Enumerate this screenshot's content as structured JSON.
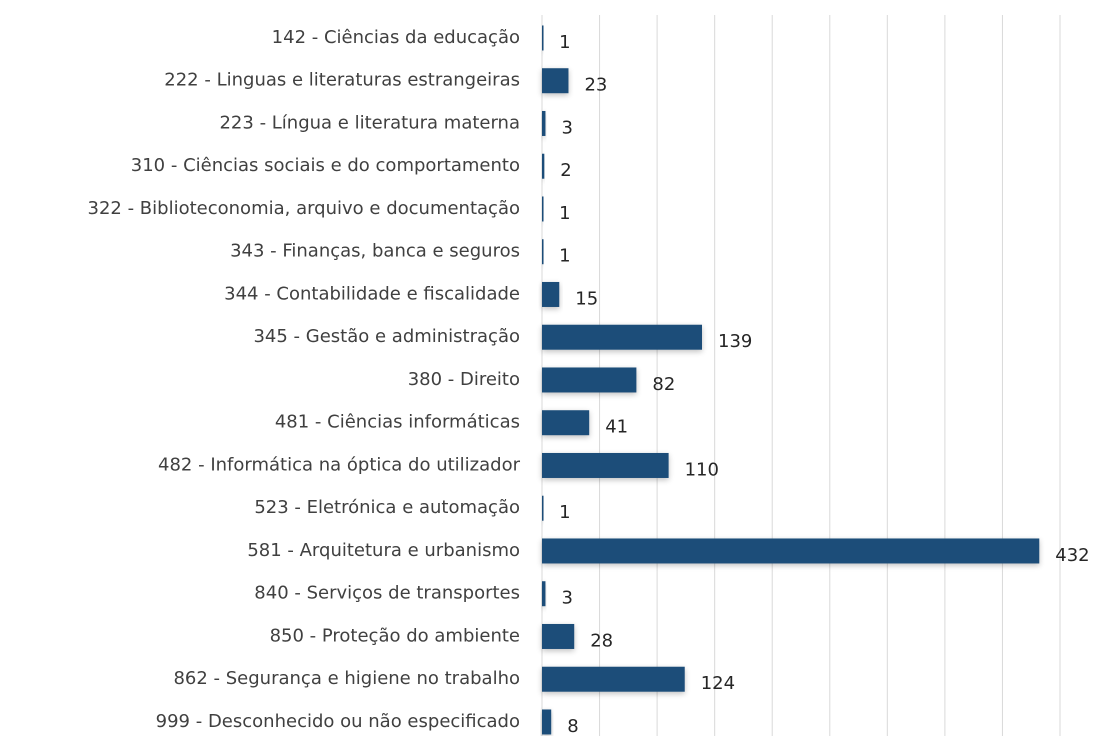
{
  "chart_data": {
    "type": "bar",
    "orientation": "horizontal",
    "categories": [
      "142 - Ciências da educação",
      "222 - Linguas e literaturas estrangeiras",
      "223 - Língua e literatura materna",
      "310 - Ciências sociais e do comportamento",
      "322 - Biblioteconomia, arquivo e documentação",
      "343 - Finanças, banca e seguros",
      "344 - Contabilidade e fiscalidade",
      "345 - Gestão e administração",
      "380 - Direito",
      "481 - Ciências informáticas",
      "482 - Informática na óptica do utilizador",
      "523 - Eletrónica e automação",
      "581 - Arquitetura e urbanismo",
      "840 - Serviços de transportes",
      "850 - Proteção do ambiente",
      "862 - Segurança e higiene no trabalho",
      "999 - Desconhecido ou não especificado"
    ],
    "values": [
      1,
      23,
      3,
      2,
      1,
      1,
      15,
      139,
      82,
      41,
      110,
      1,
      432,
      3,
      28,
      124,
      8
    ],
    "color": "#1f4e79",
    "xlim": [
      0,
      450
    ],
    "xticks": [
      0,
      50,
      100,
      150,
      200,
      250,
      300,
      350,
      400,
      450
    ],
    "grid": true
  }
}
